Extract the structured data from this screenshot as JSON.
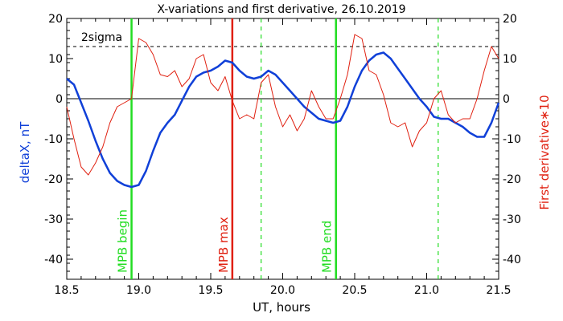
{
  "chart_data": {
    "type": "line",
    "title": "X-variations and first derivative, 26.10.2019",
    "xlabel": "UT, hours",
    "ylabel_left": "deltaX, nT",
    "ylabel_right": "First derivative∗10",
    "xlim": [
      18.5,
      21.5
    ],
    "ylim": [
      -45,
      20
    ],
    "x_ticks": [
      "18.5",
      "19.0",
      "19.5",
      "20.0",
      "20.5",
      "21.0",
      "21.5"
    ],
    "y_ticks": [
      "-40",
      "-30",
      "-20",
      "-10",
      "0",
      "10",
      "20"
    ],
    "threshold": {
      "label": "2sigma",
      "value": 13
    },
    "colors": {
      "axes": "#000000",
      "deltax": "#1040d8",
      "derivative": "#e02010",
      "mpb": "#22dd22",
      "mpb_max": "#e02010"
    },
    "markers": [
      {
        "label": "MPB begin",
        "x": 18.95,
        "style": "solid",
        "color": "#22dd22"
      },
      {
        "label": "MPB max",
        "x": 19.65,
        "style": "solid",
        "color": "#e02010"
      },
      {
        "label": "",
        "x": 19.85,
        "style": "dashed",
        "color": "#22dd22"
      },
      {
        "label": "MPB end",
        "x": 20.37,
        "style": "solid",
        "color": "#22dd22"
      },
      {
        "label": "",
        "x": 21.08,
        "style": "dashed",
        "color": "#22dd22"
      }
    ],
    "series": [
      {
        "axis": "left",
        "color": "#1040d8",
        "x": [
          18.5,
          18.55,
          18.6,
          18.65,
          18.7,
          18.75,
          18.8,
          18.85,
          18.9,
          18.95,
          19.0,
          19.05,
          19.1,
          19.15,
          19.2,
          19.25,
          19.3,
          19.35,
          19.4,
          19.45,
          19.5,
          19.55,
          19.6,
          19.65,
          19.7,
          19.75,
          19.8,
          19.85,
          19.9,
          19.95,
          20.0,
          20.05,
          20.1,
          20.15,
          20.2,
          20.25,
          20.3,
          20.35,
          20.4,
          20.45,
          20.5,
          20.55,
          20.6,
          20.65,
          20.7,
          20.75,
          20.8,
          20.85,
          20.9,
          20.95,
          21.0,
          21.05,
          21.1,
          21.15,
          21.2,
          21.25,
          21.3,
          21.35,
          21.4,
          21.45,
          21.5
        ],
        "values": [
          5,
          3.5,
          -1,
          -5.5,
          -10.5,
          -15,
          -18.5,
          -20.5,
          -21.5,
          -22,
          -21.5,
          -18,
          -13,
          -8.5,
          -6,
          -4,
          -0.5,
          3,
          5.5,
          6.5,
          7,
          8,
          9.5,
          9,
          7,
          5.5,
          5,
          5.5,
          7,
          6,
          4,
          2,
          0,
          -2,
          -3.5,
          -5,
          -5.5,
          -6,
          -5.5,
          -2,
          3,
          7,
          9.5,
          11,
          11.5,
          10,
          7.5,
          5,
          2.5,
          0,
          -2,
          -4.5,
          -5,
          -5,
          -6,
          -7,
          -8.5,
          -9.5,
          -9.5,
          -6,
          -1
        ]
      },
      {
        "axis": "right",
        "color": "#e02010",
        "x": [
          18.5,
          18.55,
          18.6,
          18.65,
          18.7,
          18.75,
          18.8,
          18.85,
          18.9,
          18.95,
          19.0,
          19.05,
          19.1,
          19.15,
          19.2,
          19.25,
          19.3,
          19.35,
          19.4,
          19.45,
          19.5,
          19.55,
          19.6,
          19.65,
          19.7,
          19.75,
          19.8,
          19.85,
          19.9,
          19.95,
          20.0,
          20.05,
          20.1,
          20.15,
          20.2,
          20.25,
          20.3,
          20.35,
          20.4,
          20.45,
          20.5,
          20.55,
          20.6,
          20.65,
          20.7,
          20.75,
          20.8,
          20.85,
          20.9,
          20.95,
          21.0,
          21.05,
          21.1,
          21.15,
          21.2,
          21.25,
          21.3,
          21.35,
          21.4,
          21.45,
          21.5
        ],
        "values": [
          -2,
          -10,
          -17,
          -19,
          -16,
          -12,
          -6,
          -2,
          -1,
          0,
          15,
          14,
          11,
          6,
          5.5,
          7,
          3,
          5,
          10,
          11,
          4,
          2,
          5.5,
          -0.5,
          -5,
          -4,
          -5,
          4,
          6,
          -2,
          -7,
          -4,
          -8,
          -5,
          2,
          -2,
          -5,
          -5,
          0,
          6,
          16,
          15,
          7,
          6,
          1,
          -6,
          -7,
          -6,
          -12,
          -8,
          -6,
          0,
          2,
          -4,
          -6,
          -5,
          -5,
          0,
          7,
          13,
          10
        ]
      }
    ]
  }
}
